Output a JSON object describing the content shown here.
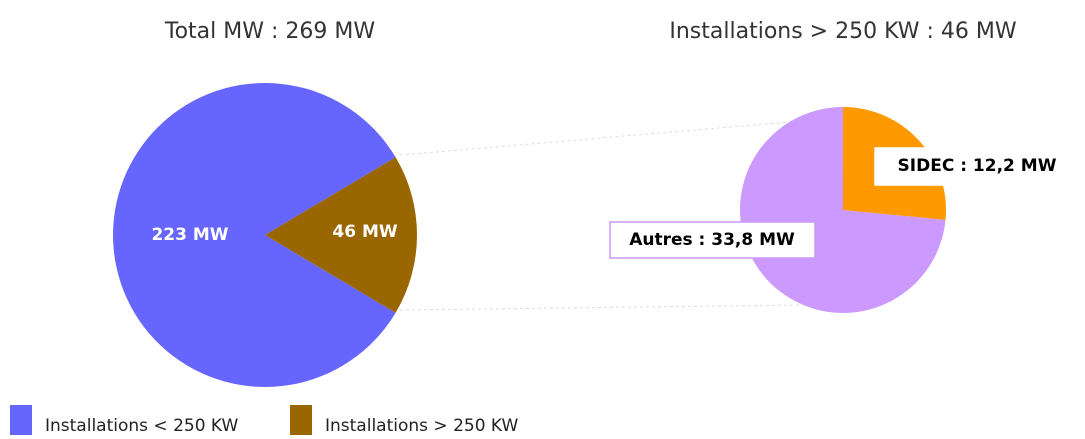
{
  "chart_data": [
    {
      "type": "pie",
      "title": "Total MW : 269 MW",
      "categories": [
        "Installations < 250 KW",
        "Installations > 250 KW"
      ],
      "values": [
        223,
        46
      ],
      "value_labels": [
        "223 MW",
        "46 MW"
      ],
      "colors": [
        "#6666ff",
        "#996600"
      ],
      "legend": true
    },
    {
      "type": "pie",
      "title": "Installations > 250 KW : 46 MW",
      "values": [
        33.8,
        12.2
      ],
      "value_labels": [
        "Autres : 33,8 MW",
        "SIDEC : 12,2 MW"
      ],
      "colors": [
        "#cc99ff",
        "#ff9900"
      ]
    }
  ]
}
